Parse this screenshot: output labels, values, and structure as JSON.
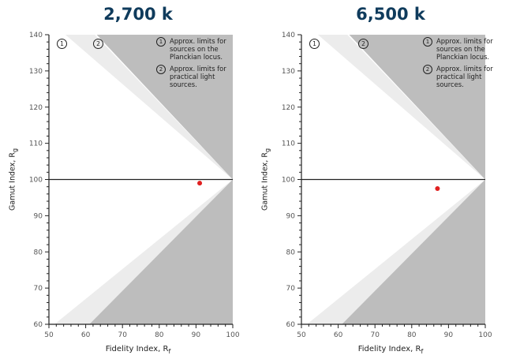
{
  "chart_data": [
    {
      "type": "scatter",
      "title": "2,700 k",
      "xlabel": "Fidelity Index, R",
      "xlabel_sub": "f",
      "ylabel": "Gamut Index, R",
      "ylabel_sub": "g",
      "xlim": [
        50,
        100
      ],
      "ylim": [
        60,
        140
      ],
      "xticks": [
        "50",
        "60",
        "70",
        "80",
        "90",
        "100"
      ],
      "yticks": [
        "60",
        "70",
        "80",
        "90",
        "100",
        "110",
        "120",
        "130",
        "140"
      ],
      "reference_line_y": 100,
      "points": [
        {
          "x": 91,
          "y": 99
        }
      ],
      "point_color": "#e02020",
      "region_markers": [
        "1",
        "2"
      ],
      "legend": [
        {
          "num": "1",
          "text": "Approx. limits for sources on the Planckian locus."
        },
        {
          "num": "2",
          "text": "Approx. limits for practical light sources."
        }
      ]
    },
    {
      "type": "scatter",
      "title": "6,500 k",
      "xlabel": "Fidelity Index, R",
      "xlabel_sub": "f",
      "ylabel": "Gamut Index, R",
      "ylabel_sub": "g",
      "xlim": [
        50,
        100
      ],
      "ylim": [
        60,
        140
      ],
      "xticks": [
        "50",
        "60",
        "70",
        "80",
        "90",
        "100"
      ],
      "yticks": [
        "60",
        "70",
        "80",
        "90",
        "100",
        "110",
        "120",
        "130",
        "140"
      ],
      "reference_line_y": 100,
      "points": [
        {
          "x": 87,
          "y": 97.5
        }
      ],
      "point_color": "#e02020",
      "region_markers": [
        "1",
        "2"
      ],
      "legend": [
        {
          "num": "1",
          "text": "Approx. limits for sources on the Planckian locus."
        },
        {
          "num": "2",
          "text": "Approx. limits for practical light sources."
        }
      ]
    }
  ],
  "colors": {
    "title": "#0f3b5c",
    "region_dark": "#bdbdbd",
    "region_light": "#ececec",
    "axis": "#222222"
  }
}
